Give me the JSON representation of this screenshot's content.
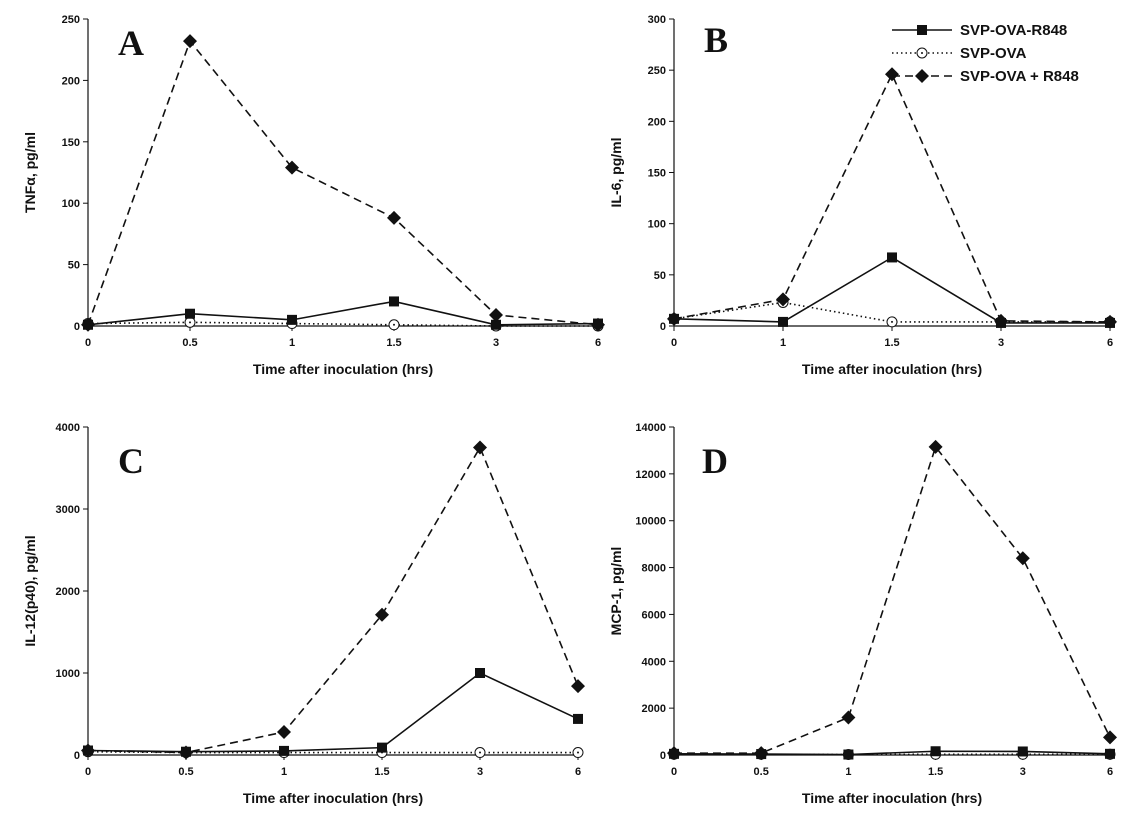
{
  "chart_data": [
    {
      "type": "line",
      "panel": "A",
      "ylabel": "TNFα, pg/ml",
      "xlabel": "Time after inoculation (hrs)",
      "categories": [
        "0",
        "0.5",
        "1",
        "1.5",
        "3",
        "6"
      ],
      "ylim": [
        0,
        250
      ],
      "yticks": [
        0,
        50,
        100,
        150,
        200,
        250
      ],
      "series": [
        {
          "name": "SVP-OVA-R848",
          "values": [
            1,
            10,
            5,
            20,
            1,
            2
          ]
        },
        {
          "name": "SVP-OVA",
          "values": [
            2,
            3,
            2,
            1,
            0,
            0
          ]
        },
        {
          "name": "SVP-OVA + R848",
          "values": [
            1,
            232,
            129,
            88,
            9,
            1
          ]
        }
      ]
    },
    {
      "type": "line",
      "panel": "B",
      "ylabel": "IL-6, pg/ml",
      "xlabel": "Time after inoculation (hrs)",
      "categories": [
        "0",
        "1",
        "1.5",
        "3",
        "6"
      ],
      "ylim": [
        0,
        300
      ],
      "yticks": [
        0,
        50,
        100,
        150,
        200,
        250,
        300
      ],
      "series": [
        {
          "name": "SVP-OVA-R848",
          "values": [
            7,
            4,
            67,
            3,
            3
          ]
        },
        {
          "name": "SVP-OVA",
          "values": [
            7,
            23,
            4,
            4,
            4
          ]
        },
        {
          "name": "SVP-OVA + R848",
          "values": [
            7,
            26,
            246,
            5,
            4
          ]
        }
      ]
    },
    {
      "type": "line",
      "panel": "C",
      "ylabel": "IL-12(p40), pg/ml",
      "xlabel": "Time after inoculation (hrs)",
      "categories": [
        "0",
        "0.5",
        "1",
        "1.5",
        "3",
        "6"
      ],
      "ylim": [
        0,
        4000
      ],
      "yticks": [
        0,
        1000,
        2000,
        3000,
        4000
      ],
      "series": [
        {
          "name": "SVP-OVA-R848",
          "values": [
            55,
            40,
            50,
            90,
            1000,
            440
          ]
        },
        {
          "name": "SVP-OVA",
          "values": [
            40,
            30,
            30,
            30,
            30,
            30
          ]
        },
        {
          "name": "SVP-OVA + R848",
          "values": [
            55,
            30,
            280,
            1710,
            3750,
            840
          ]
        }
      ]
    },
    {
      "type": "line",
      "panel": "D",
      "ylabel": "MCP-1, pg/ml",
      "xlabel": "Time after inoculation (hrs)",
      "categories": [
        "0",
        "0.5",
        "1",
        "1.5",
        "3",
        "6"
      ],
      "ylim": [
        0,
        14000
      ],
      "yticks": [
        0,
        2000,
        4000,
        6000,
        8000,
        10000,
        12000,
        14000
      ],
      "series": [
        {
          "name": "SVP-OVA-R848",
          "values": [
            50,
            40,
            20,
            160,
            150,
            50
          ]
        },
        {
          "name": "SVP-OVA",
          "values": [
            30,
            30,
            20,
            30,
            30,
            30
          ]
        },
        {
          "name": "SVP-OVA + R848",
          "values": [
            80,
            80,
            1600,
            13150,
            8400,
            750
          ]
        }
      ]
    }
  ],
  "legend": {
    "placement": "top-right",
    "items": [
      "SVP-OVA-R848",
      "SVP-OVA",
      "SVP-OVA + R848"
    ]
  },
  "styles": {
    "SVP-OVA-R848": {
      "dash": "",
      "marker": "square",
      "color": "#111111"
    },
    "SVP-OVA": {
      "dash": "dotted",
      "marker": "open-circle",
      "color": "#111111"
    },
    "SVP-OVA + R848": {
      "dash": "dashed",
      "marker": "diamond",
      "color": "#111111"
    }
  }
}
